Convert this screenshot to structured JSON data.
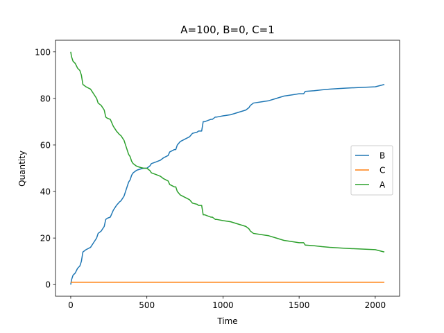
{
  "chart_data": {
    "type": "line",
    "title": "A=100, B=0, C=1",
    "xlabel": "Time",
    "ylabel": "Quantity",
    "xlim": [
      -100,
      2160
    ],
    "ylim": [
      -5,
      105
    ],
    "xticks": [
      0,
      500,
      1000,
      1500,
      2000
    ],
    "yticks": [
      0,
      20,
      40,
      60,
      80,
      100
    ],
    "grid": false,
    "legend_position": "center-right",
    "series": [
      {
        "name": "B",
        "color": "#1f77b4",
        "x": [
          0,
          5,
          15,
          30,
          45,
          60,
          70,
          80,
          100,
          130,
          150,
          170,
          180,
          200,
          220,
          230,
          240,
          260,
          280,
          290,
          300,
          320,
          330,
          350,
          360,
          380,
          385,
          390,
          400,
          410,
          420,
          430,
          440,
          460,
          480,
          500,
          520,
          530,
          560,
          590,
          610,
          640,
          650,
          680,
          690,
          700,
          720,
          750,
          780,
          800,
          830,
          840,
          860,
          870,
          880,
          900,
          920,
          930,
          950,
          960,
          1000,
          1050,
          1100,
          1150,
          1170,
          1180,
          1200,
          1250,
          1300,
          1350,
          1400,
          1450,
          1500,
          1530,
          1540,
          1600,
          1650,
          1700,
          1800,
          1900,
          2000,
          2060
        ],
        "y": [
          0,
          2,
          4,
          5,
          7,
          8,
          10,
          14,
          15,
          16,
          18,
          20,
          22,
          23,
          25,
          28,
          28.5,
          29,
          32,
          33,
          34,
          35.5,
          36,
          38,
          40,
          44,
          44.5,
          45,
          47,
          48,
          48.5,
          49,
          49.3,
          49.7,
          50,
          50,
          51,
          52,
          52.7,
          53.5,
          54.5,
          55.5,
          57,
          58,
          58,
          60,
          61.5,
          62.5,
          63.5,
          65,
          65.5,
          66,
          66,
          70,
          70,
          70.5,
          71,
          71,
          72,
          72,
          72.5,
          73,
          74,
          75,
          76,
          77,
          78,
          78.5,
          79,
          80,
          81,
          81.5,
          82,
          82,
          83,
          83.3,
          83.7,
          84,
          84.4,
          84.7,
          85,
          86
        ]
      },
      {
        "name": "C",
        "color": "#ff7f0e",
        "x": [
          0,
          2060
        ],
        "y": [
          1,
          1
        ]
      },
      {
        "name": "A",
        "color": "#2ca02c",
        "x": [
          0,
          5,
          15,
          30,
          45,
          60,
          70,
          80,
          100,
          130,
          150,
          170,
          180,
          200,
          220,
          230,
          240,
          260,
          280,
          290,
          300,
          320,
          330,
          350,
          360,
          380,
          385,
          390,
          400,
          410,
          420,
          430,
          440,
          460,
          480,
          500,
          520,
          530,
          560,
          590,
          610,
          640,
          650,
          680,
          690,
          700,
          720,
          750,
          780,
          800,
          830,
          840,
          860,
          870,
          880,
          900,
          920,
          930,
          950,
          960,
          1000,
          1050,
          1100,
          1150,
          1170,
          1180,
          1200,
          1250,
          1300,
          1350,
          1400,
          1450,
          1500,
          1530,
          1540,
          1600,
          1650,
          1700,
          1800,
          1900,
          2000,
          2060
        ],
        "y": [
          100,
          98,
          96,
          95,
          93,
          92,
          90,
          86,
          85,
          84,
          82,
          80,
          78,
          77,
          75,
          72,
          71.5,
          71,
          68,
          67,
          66,
          64.5,
          64,
          62,
          60,
          56,
          55.5,
          55,
          53,
          52,
          51.5,
          51,
          50.7,
          50.3,
          50,
          50,
          49,
          48,
          47.3,
          46.5,
          45.5,
          44.5,
          43,
          42,
          42,
          40,
          38.5,
          37.5,
          36.5,
          35,
          34.5,
          34,
          34,
          30,
          30,
          29.5,
          29,
          29,
          28,
          28,
          27.5,
          27,
          26,
          25,
          24,
          23,
          22,
          21.5,
          21,
          20,
          19,
          18.5,
          18,
          18,
          17,
          16.7,
          16.3,
          16,
          15.6,
          15.3,
          15,
          14
        ]
      }
    ]
  }
}
